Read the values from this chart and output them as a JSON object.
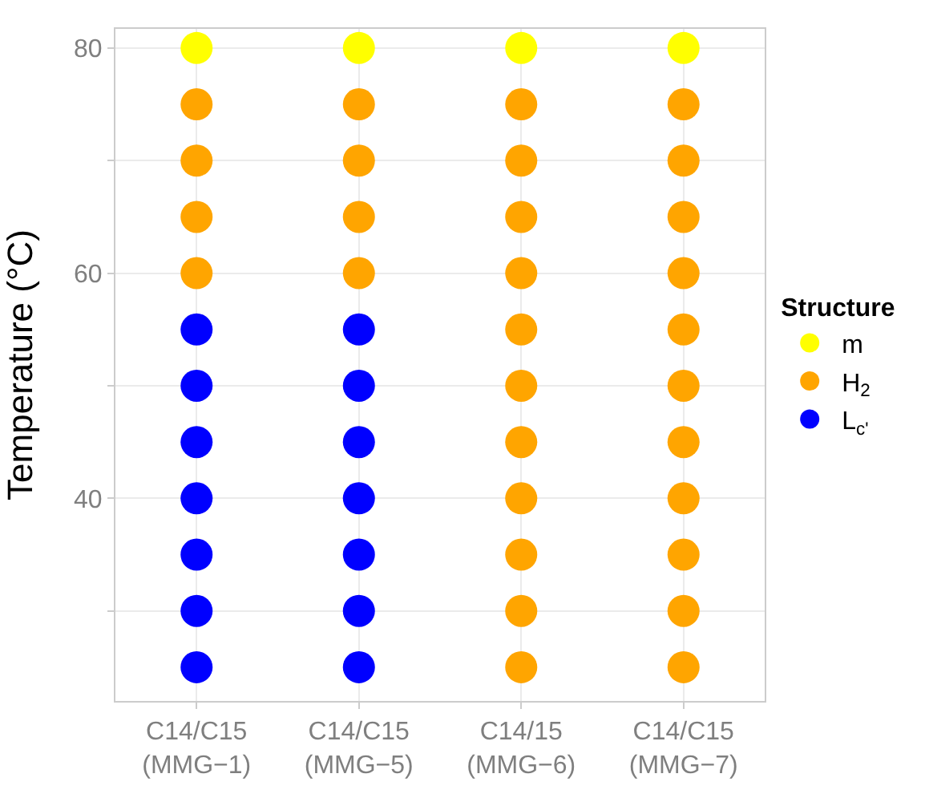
{
  "chart_data": {
    "type": "scatter",
    "ylabel": "Temperature (°C)",
    "legend_title": "Structure",
    "categories": [
      "C14/C15\n(MMG−1)",
      "C14/C15\n(MMG−5)",
      "C14/15\n(MMG−6)",
      "C14/C15\n(MMG−7)"
    ],
    "series": [
      {
        "name": "m",
        "color": "#ffff00",
        "x": [
          "C14/C15\n(MMG−1)",
          "C14/C15\n(MMG−5)",
          "C14/15\n(MMG−6)",
          "C14/C15\n(MMG−7)"
        ],
        "values": [
          80,
          80,
          80,
          80
        ]
      },
      {
        "name": "H$_{2}$",
        "color": "#ffa500",
        "x": [
          "C14/C15\n(MMG−1)",
          "C14/C15\n(MMG−1)",
          "C14/C15\n(MMG−1)",
          "C14/C15\n(MMG−1)",
          "C14/C15\n(MMG−5)",
          "C14/C15\n(MMG−5)",
          "C14/C15\n(MMG−5)",
          "C14/C15\n(MMG−5)",
          "C14/15\n(MMG−6)",
          "C14/15\n(MMG−6)",
          "C14/15\n(MMG−6)",
          "C14/15\n(MMG−6)",
          "C14/15\n(MMG−6)",
          "C14/15\n(MMG−6)",
          "C14/15\n(MMG−6)",
          "C14/15\n(MMG−6)",
          "C14/15\n(MMG−6)",
          "C14/15\n(MMG−6)",
          "C14/15\n(MMG−6)",
          "C14/C15\n(MMG−7)",
          "C14/C15\n(MMG−7)",
          "C14/C15\n(MMG−7)",
          "C14/C15\n(MMG−7)",
          "C14/C15\n(MMG−7)",
          "C14/C15\n(MMG−7)",
          "C14/C15\n(MMG−7)",
          "C14/C15\n(MMG−7)",
          "C14/C15\n(MMG−7)",
          "C14/C15\n(MMG−7)",
          "C14/C15\n(MMG−7)"
        ],
        "values": [
          60,
          65,
          70,
          75,
          60,
          65,
          70,
          75,
          25,
          30,
          35,
          40,
          45,
          50,
          55,
          60,
          65,
          70,
          75,
          25,
          30,
          35,
          40,
          45,
          50,
          55,
          60,
          65,
          70,
          75
        ]
      },
      {
        "name": "L$_{c'}$",
        "color": "#0000ff",
        "x": [
          "C14/C15\n(MMG−1)",
          "C14/C15\n(MMG−1)",
          "C14/C15\n(MMG−1)",
          "C14/C15\n(MMG−1)",
          "C14/C15\n(MMG−1)",
          "C14/C15\n(MMG−1)",
          "C14/C15\n(MMG−1)",
          "C14/C15\n(MMG−5)",
          "C14/C15\n(MMG−5)",
          "C14/C15\n(MMG−5)",
          "C14/C15\n(MMG−5)",
          "C14/C15\n(MMG−5)",
          "C14/C15\n(MMG−5)",
          "C14/C15\n(MMG−5)"
        ],
        "values": [
          25,
          30,
          35,
          40,
          45,
          50,
          55,
          25,
          30,
          35,
          40,
          45,
          50,
          55
        ]
      }
    ],
    "ylim": [
      22,
      81.7
    ],
    "yticks": [
      {
        "value": 30,
        "label": null
      },
      40,
      {
        "value": 50,
        "label": null
      },
      60,
      {
        "value": 70,
        "label": null
      },
      80
    ],
    "grid": true,
    "legend": "right",
    "marker": "circle"
  }
}
